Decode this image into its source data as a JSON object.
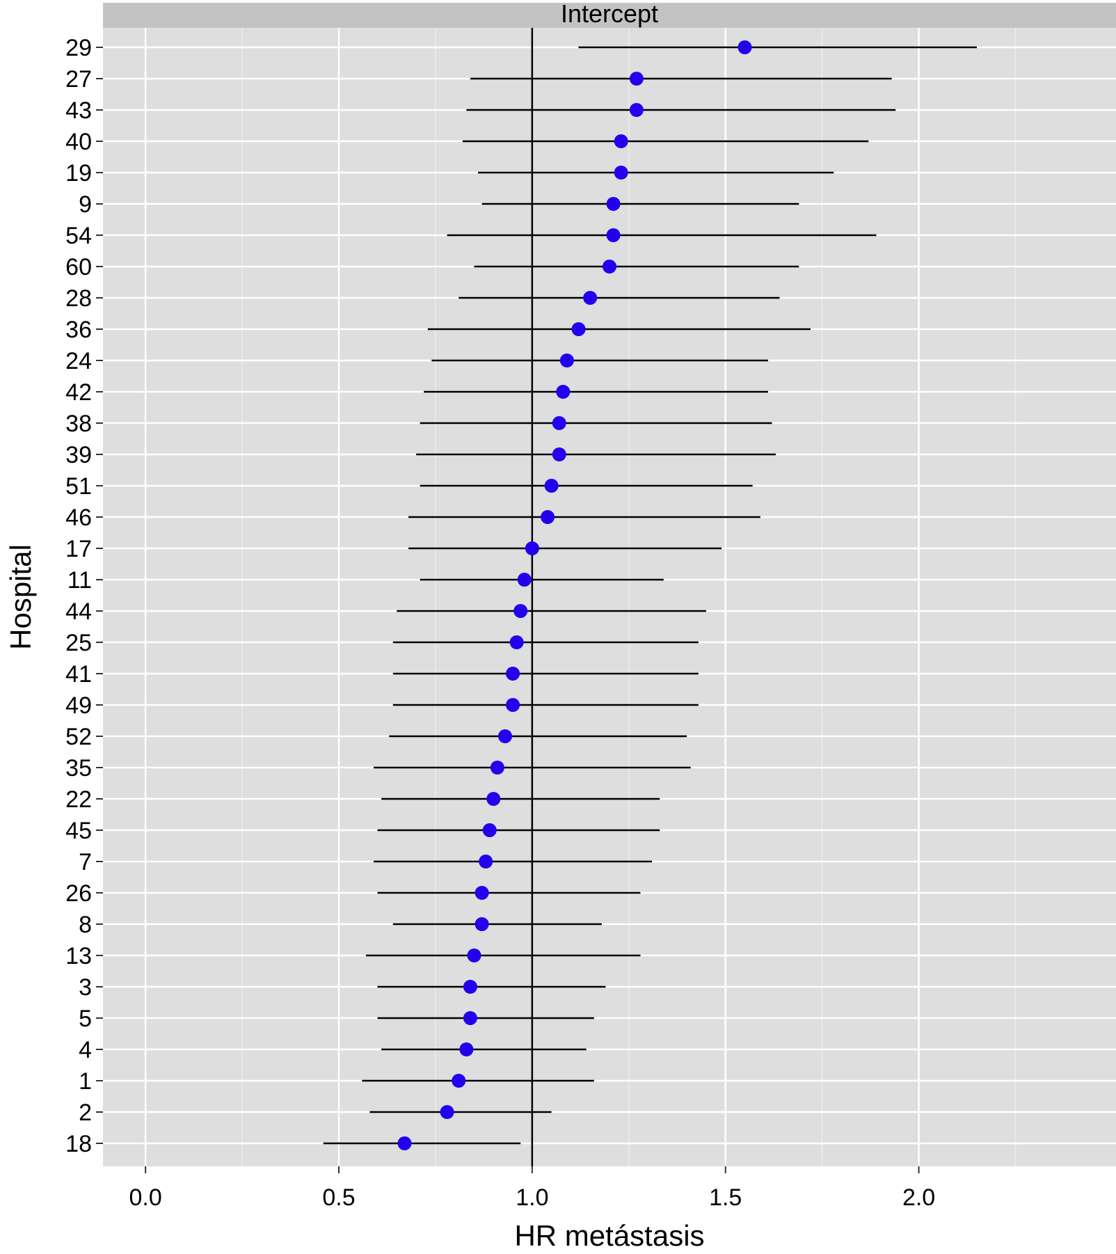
{
  "chart_data": {
    "type": "forest",
    "facet_label": "Intercept",
    "xlabel": "HR metástasis",
    "ylabel": "Hospital",
    "xlim": [
      -0.11,
      2.51
    ],
    "x_ticks": [
      0.0,
      0.5,
      1.0,
      1.5,
      2.0
    ],
    "x_tick_labels": [
      "0.0",
      "0.5",
      "1.0",
      "1.5",
      "2.0"
    ],
    "reference_line_x": 1.0,
    "grid": true,
    "point_color": "#2200ee",
    "panel_background": "#dedede",
    "strip_background": "#c3c3c3",
    "rows": [
      {
        "hospital": "29",
        "estimate": 1.55,
        "lower": 1.12,
        "upper": 2.15
      },
      {
        "hospital": "27",
        "estimate": 1.27,
        "lower": 0.84,
        "upper": 1.93
      },
      {
        "hospital": "43",
        "estimate": 1.27,
        "lower": 0.83,
        "upper": 1.94
      },
      {
        "hospital": "40",
        "estimate": 1.23,
        "lower": 0.82,
        "upper": 1.87
      },
      {
        "hospital": "19",
        "estimate": 1.23,
        "lower": 0.86,
        "upper": 1.78
      },
      {
        "hospital": "9",
        "estimate": 1.21,
        "lower": 0.87,
        "upper": 1.69
      },
      {
        "hospital": "54",
        "estimate": 1.21,
        "lower": 0.78,
        "upper": 1.89
      },
      {
        "hospital": "60",
        "estimate": 1.2,
        "lower": 0.85,
        "upper": 1.69
      },
      {
        "hospital": "28",
        "estimate": 1.15,
        "lower": 0.81,
        "upper": 1.64
      },
      {
        "hospital": "36",
        "estimate": 1.12,
        "lower": 0.73,
        "upper": 1.72
      },
      {
        "hospital": "24",
        "estimate": 1.09,
        "lower": 0.74,
        "upper": 1.61
      },
      {
        "hospital": "42",
        "estimate": 1.08,
        "lower": 0.72,
        "upper": 1.61
      },
      {
        "hospital": "38",
        "estimate": 1.07,
        "lower": 0.71,
        "upper": 1.62
      },
      {
        "hospital": "39",
        "estimate": 1.07,
        "lower": 0.7,
        "upper": 1.63
      },
      {
        "hospital": "51",
        "estimate": 1.05,
        "lower": 0.71,
        "upper": 1.57
      },
      {
        "hospital": "46",
        "estimate": 1.04,
        "lower": 0.68,
        "upper": 1.59
      },
      {
        "hospital": "17",
        "estimate": 1.0,
        "lower": 0.68,
        "upper": 1.49
      },
      {
        "hospital": "11",
        "estimate": 0.98,
        "lower": 0.71,
        "upper": 1.34
      },
      {
        "hospital": "44",
        "estimate": 0.97,
        "lower": 0.65,
        "upper": 1.45
      },
      {
        "hospital": "25",
        "estimate": 0.96,
        "lower": 0.64,
        "upper": 1.43
      },
      {
        "hospital": "41",
        "estimate": 0.95,
        "lower": 0.64,
        "upper": 1.43
      },
      {
        "hospital": "49",
        "estimate": 0.95,
        "lower": 0.64,
        "upper": 1.43
      },
      {
        "hospital": "52",
        "estimate": 0.93,
        "lower": 0.63,
        "upper": 1.4
      },
      {
        "hospital": "35",
        "estimate": 0.91,
        "lower": 0.59,
        "upper": 1.41
      },
      {
        "hospital": "22",
        "estimate": 0.9,
        "lower": 0.61,
        "upper": 1.33
      },
      {
        "hospital": "45",
        "estimate": 0.89,
        "lower": 0.6,
        "upper": 1.33
      },
      {
        "hospital": "7",
        "estimate": 0.88,
        "lower": 0.59,
        "upper": 1.31
      },
      {
        "hospital": "26",
        "estimate": 0.87,
        "lower": 0.6,
        "upper": 1.28
      },
      {
        "hospital": "8",
        "estimate": 0.87,
        "lower": 0.64,
        "upper": 1.18
      },
      {
        "hospital": "13",
        "estimate": 0.85,
        "lower": 0.57,
        "upper": 1.28
      },
      {
        "hospital": "3",
        "estimate": 0.84,
        "lower": 0.6,
        "upper": 1.19
      },
      {
        "hospital": "5",
        "estimate": 0.84,
        "lower": 0.6,
        "upper": 1.16
      },
      {
        "hospital": "4",
        "estimate": 0.83,
        "lower": 0.61,
        "upper": 1.14
      },
      {
        "hospital": "1",
        "estimate": 0.81,
        "lower": 0.56,
        "upper": 1.16
      },
      {
        "hospital": "2",
        "estimate": 0.78,
        "lower": 0.58,
        "upper": 1.05
      },
      {
        "hospital": "18",
        "estimate": 0.67,
        "lower": 0.46,
        "upper": 0.97
      }
    ]
  }
}
